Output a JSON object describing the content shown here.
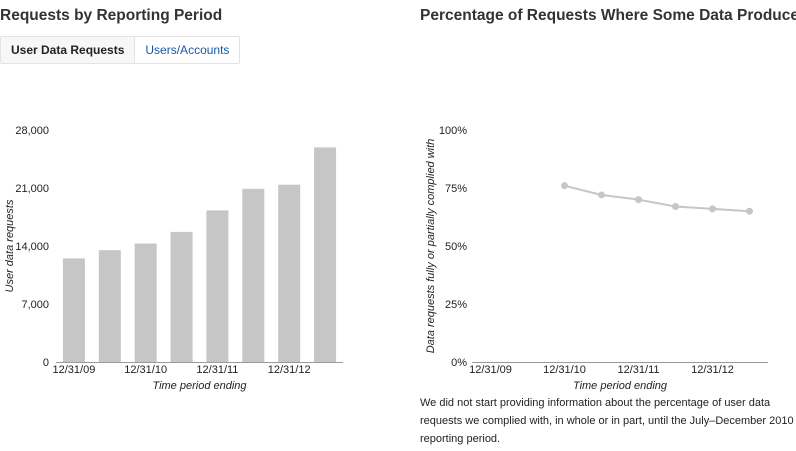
{
  "headings": {
    "left": "Requests by Reporting Period",
    "right": "Percentage of Requests Where Some Data Produced"
  },
  "tabs": [
    {
      "label": "User Data Requests",
      "active": true
    },
    {
      "label": "Users/Accounts",
      "active": false
    }
  ],
  "chart_data": [
    {
      "type": "bar",
      "title": "Requests by Reporting Period",
      "xlabel": "Time period ending",
      "ylabel": "User data requests",
      "ylim": [
        0,
        28000
      ],
      "yticks": [
        "0",
        "7,000",
        "14,000",
        "21,000",
        "28,000"
      ],
      "yticks_values": [
        0,
        7000,
        14000,
        21000,
        28000
      ],
      "categories": [
        "12/31/09",
        "",
        "12/31/10",
        "",
        "12/31/11",
        "",
        "12/31/12",
        ""
      ],
      "values": [
        12500,
        13500,
        14300,
        15700,
        18300,
        20900,
        21400,
        25900
      ],
      "grid": false,
      "color": "#c6c6c6"
    },
    {
      "type": "line",
      "title": "Percentage of Requests Where Some Data Produced",
      "xlabel": "Time period ending",
      "ylabel": "Data requests fully or partially complied with",
      "ylim": [
        0,
        100
      ],
      "yticks": [
        "0%",
        "25%",
        "50%",
        "75%",
        "100%"
      ],
      "yticks_values": [
        0,
        25,
        50,
        75,
        100
      ],
      "categories": [
        "12/31/09",
        "",
        "12/31/10",
        "",
        "12/31/11",
        "",
        "12/31/12",
        ""
      ],
      "values": [
        null,
        null,
        76,
        72,
        70,
        67,
        66,
        65
      ],
      "grid": false,
      "color": "#c6c6c6"
    }
  ],
  "footnote": "We did not start providing information about the percentage of user data requests we complied with, in whole or in part, until the July–December 2010 reporting period."
}
